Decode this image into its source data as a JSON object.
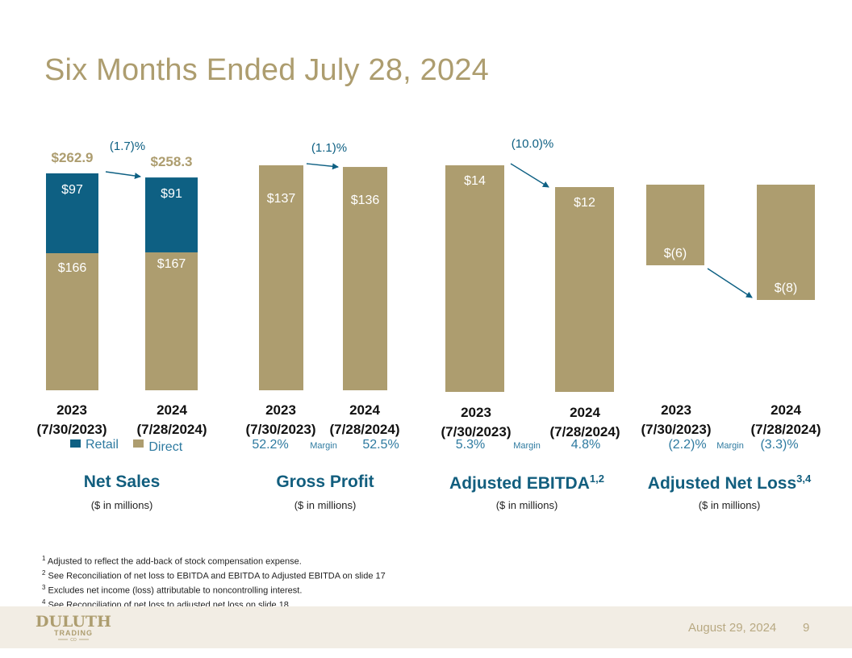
{
  "page_title": "Six Months Ended July 28, 2024",
  "colors": {
    "gold": "#ad9d6f",
    "blue": "#0e6083",
    "arrow": "#0e6083"
  },
  "chart_data": [
    {
      "type": "bar",
      "stacked": true,
      "title": "Net Sales",
      "subtitle": "($ in millions)",
      "categories": [
        "2023 (7/30/2023)",
        "2024 (7/28/2024)"
      ],
      "category_years": [
        "2023",
        "2024"
      ],
      "category_dates": [
        "(7/30/2023)",
        "(7/28/2024)"
      ],
      "series": [
        {
          "name": "Direct",
          "color": "#ad9d6f",
          "values": [
            166,
            167
          ],
          "labels": [
            "$166",
            "$167"
          ]
        },
        {
          "name": "Retail",
          "color": "#0e6083",
          "values": [
            97,
            91
          ],
          "labels": [
            "$97",
            "$91"
          ]
        }
      ],
      "totals": [
        262.9,
        258.3
      ],
      "total_labels": [
        "$262.9",
        "$258.3"
      ],
      "change_label": "(1.7)%",
      "legend": [
        "Retail",
        "Direct"
      ],
      "legend_position": "bottom-left"
    },
    {
      "type": "bar",
      "title": "Gross Profit",
      "subtitle": "($ in millions)",
      "categories": [
        "2023 (7/30/2023)",
        "2024 (7/28/2024)"
      ],
      "category_years": [
        "2023",
        "2024"
      ],
      "category_dates": [
        "(7/30/2023)",
        "(7/28/2024)"
      ],
      "values": [
        137,
        136
      ],
      "labels": [
        "$137",
        "$136"
      ],
      "change_label": "(1.1)%",
      "margin_label": "Margin",
      "margins": [
        "52.2%",
        "52.5%"
      ]
    },
    {
      "type": "bar",
      "title": "Adjusted EBITDA",
      "title_superscript": "1,2",
      "subtitle": "($ in millions)",
      "categories": [
        "2023 (7/30/2023)",
        "2024 (7/28/2024)"
      ],
      "category_years": [
        "2023",
        "2024"
      ],
      "category_dates": [
        "(7/30/2023)",
        "(7/28/2024)"
      ],
      "values": [
        14,
        12
      ],
      "labels": [
        "$14",
        "$12"
      ],
      "change_label": "(10.0)%",
      "margin_label": "Margin",
      "margins": [
        "5.3%",
        "4.8%"
      ]
    },
    {
      "type": "bar",
      "title": "Adjusted Net Loss",
      "title_superscript": "3,4",
      "subtitle": "($ in millions)",
      "categories": [
        "2023 (7/30/2023)",
        "2024 (7/28/2024)"
      ],
      "category_years": [
        "2023",
        "2024"
      ],
      "category_dates": [
        "(7/30/2023)",
        "(7/28/2024)"
      ],
      "values": [
        -6,
        -8
      ],
      "labels": [
        "$(6)",
        "$(8)"
      ],
      "margin_label": "Margin",
      "margins": [
        "(2.2)%",
        "(3.3)%"
      ]
    }
  ],
  "footnotes": [
    {
      "num": "1",
      "text": "Adjusted to reflect the add-back of stock compensation expense."
    },
    {
      "num": "2",
      "text": "See Reconciliation of net loss to EBITDA and EBITDA to Adjusted EBITDA on slide 17"
    },
    {
      "num": "3",
      "text": "Excludes net income (loss) attributable to noncontrolling interest."
    },
    {
      "num": "4",
      "text": "See Reconciliation of net loss to adjusted net loss on slide 18"
    }
  ],
  "footer": {
    "logo_line1": "DULUTH",
    "logo_line2": "TRADING",
    "logo_line3": "CO",
    "date": "August 29, 2024",
    "page_number": "9"
  }
}
